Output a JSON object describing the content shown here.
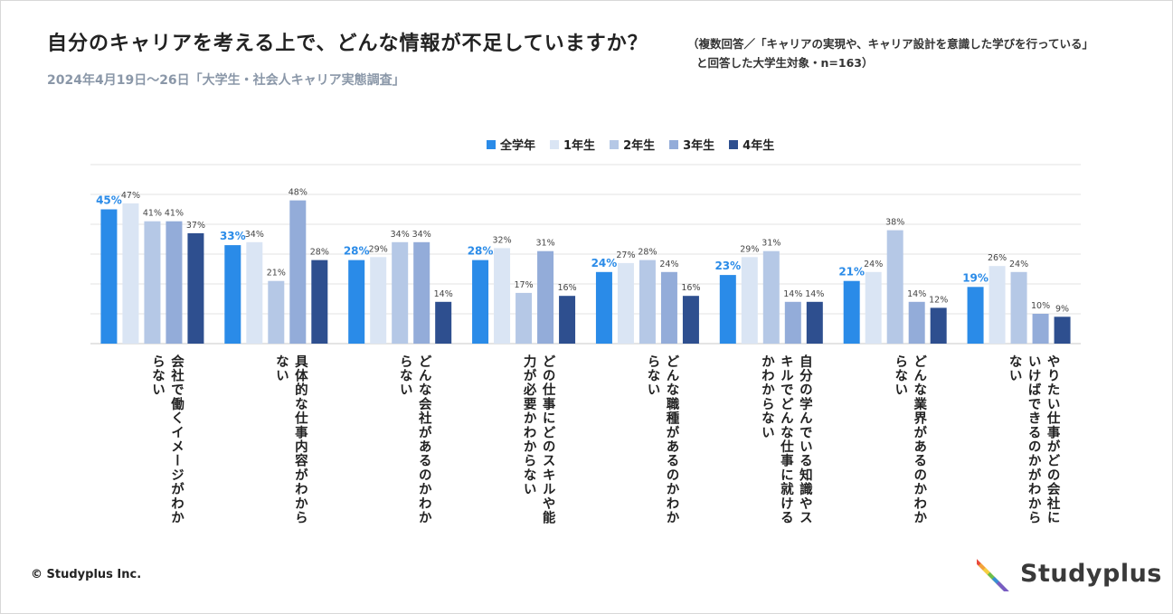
{
  "header": {
    "title": "自分のキャリアを考える上で、どんな情報が不足していますか？",
    "note_line1": "（複数回答／「キャリアの実現や、キャリア設計を意識した学びを行っている」",
    "note_line2": "と回答した大学生対象・n=163）",
    "survey": "2024年4月19日～26日「大学生・社会人キャリア実態調査」"
  },
  "footer": {
    "copyright": "© Studyplus Inc.",
    "logo_text": "Studyplus",
    "logo_colors": [
      "#e94b3c",
      "#f2a33a",
      "#f4d03f",
      "#6cbf4a",
      "#3a8fd6",
      "#7a5cc2"
    ]
  },
  "chart_data": {
    "type": "bar",
    "title": "自分のキャリアを考える上で、どんな情報が不足していますか？",
    "ylim": [
      0,
      60
    ],
    "grid": true,
    "legend_position": "top",
    "categories": [
      "会社で働くイメージがわからない",
      "具体的な仕事内容がわからない",
      "どんな会社があるのかわからない",
      "どの仕事にどのスキルや能力が必要かわからない",
      "どんな職種があるのかわからない",
      "自分の学んでいる知識やスキルでどんな仕事に就けるかわからない",
      "どんな業界があるのかわからない",
      "やりたい仕事がどの会社にいけばできるのかがわからない"
    ],
    "category_lines": [
      [
        "会社で働くイメージがわか",
        "らない"
      ],
      [
        "具体的な仕事内容がわから",
        "ない"
      ],
      [
        "どんな会社があるのかわか",
        "らない"
      ],
      [
        "どの仕事にどのスキルや能",
        "力が必要かわからない"
      ],
      [
        "どんな職種があるのかわか",
        "らない"
      ],
      [
        "自分の学んでいる知識やス",
        "キルでどんな仕事に就ける",
        "かわからない"
      ],
      [
        "どんな業界があるのかわか",
        "らない"
      ],
      [
        "やりたい仕事がどの会社に",
        "いけばできるのかがわから",
        "ない"
      ]
    ],
    "series": [
      {
        "name": "全学年",
        "color": "#2a8be8",
        "label_color": "#2a8be8",
        "values": [
          45,
          33,
          28,
          28,
          24,
          23,
          21,
          19
        ]
      },
      {
        "name": "1年生",
        "color": "#dae5f4",
        "label_color": "#444444",
        "values": [
          47,
          34,
          29,
          32,
          27,
          29,
          24,
          26
        ]
      },
      {
        "name": "2年生",
        "color": "#b5c8e6",
        "label_color": "#444444",
        "values": [
          41,
          21,
          34,
          17,
          28,
          31,
          38,
          24
        ]
      },
      {
        "name": "3年生",
        "color": "#93acd9",
        "label_color": "#444444",
        "values": [
          41,
          48,
          34,
          31,
          24,
          14,
          14,
          10
        ]
      },
      {
        "name": "4年生",
        "color": "#2e4f8f",
        "label_color": "#444444",
        "values": [
          37,
          28,
          14,
          16,
          16,
          14,
          12,
          9
        ]
      }
    ],
    "value_suffix": "%"
  }
}
